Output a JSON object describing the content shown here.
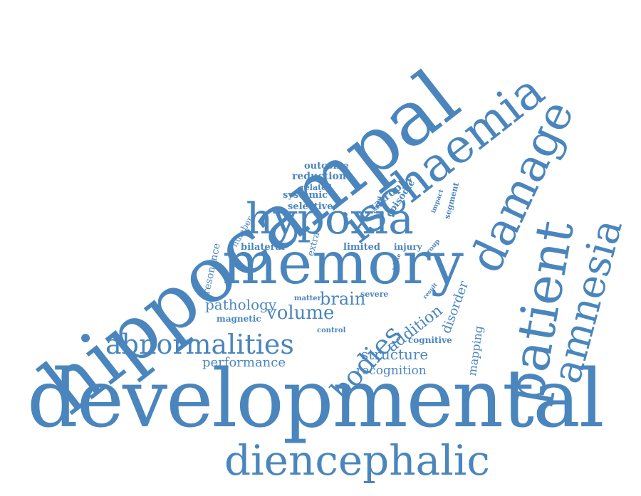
{
  "color": "#4a86bd",
  "words": {
    "developmental": "developmental",
    "diencephalic": "diencephalic",
    "hippocampal": "hippocampal",
    "ischaemia": "ischaemia",
    "damage": "damage",
    "patient": "patient",
    "amnesia": "amnesia",
    "memory": "memory",
    "hypoxia": "hypoxia",
    "abnormalities": "abnormalities",
    "bodies": "bodies",
    "addition": "addition",
    "volume": "volume",
    "pathology": "pathology",
    "brain": "brain",
    "structure": "structure",
    "recognition": "recognition",
    "performance": "performance",
    "disorder": "disorder",
    "mapping": "mapping",
    "cognitive": "cognitive",
    "magnetic": "magnetic",
    "matter": "matter",
    "control": "control",
    "severe": "severe",
    "result": "result",
    "resonance": "resonance",
    "number": "number",
    "bilateral": "bilateral",
    "extra": "extra",
    "limited": "limited",
    "injury": "injury",
    "white": "white",
    "group": "group",
    "outcome": "outcome",
    "reduction": "reduction",
    "related": "related",
    "systemic": "systemic",
    "selective": "selective",
    "atrophy": "atrophy",
    "episodic": "episodic",
    "equal": "equal",
    "impact": "impact",
    "segment": "segment"
  }
}
